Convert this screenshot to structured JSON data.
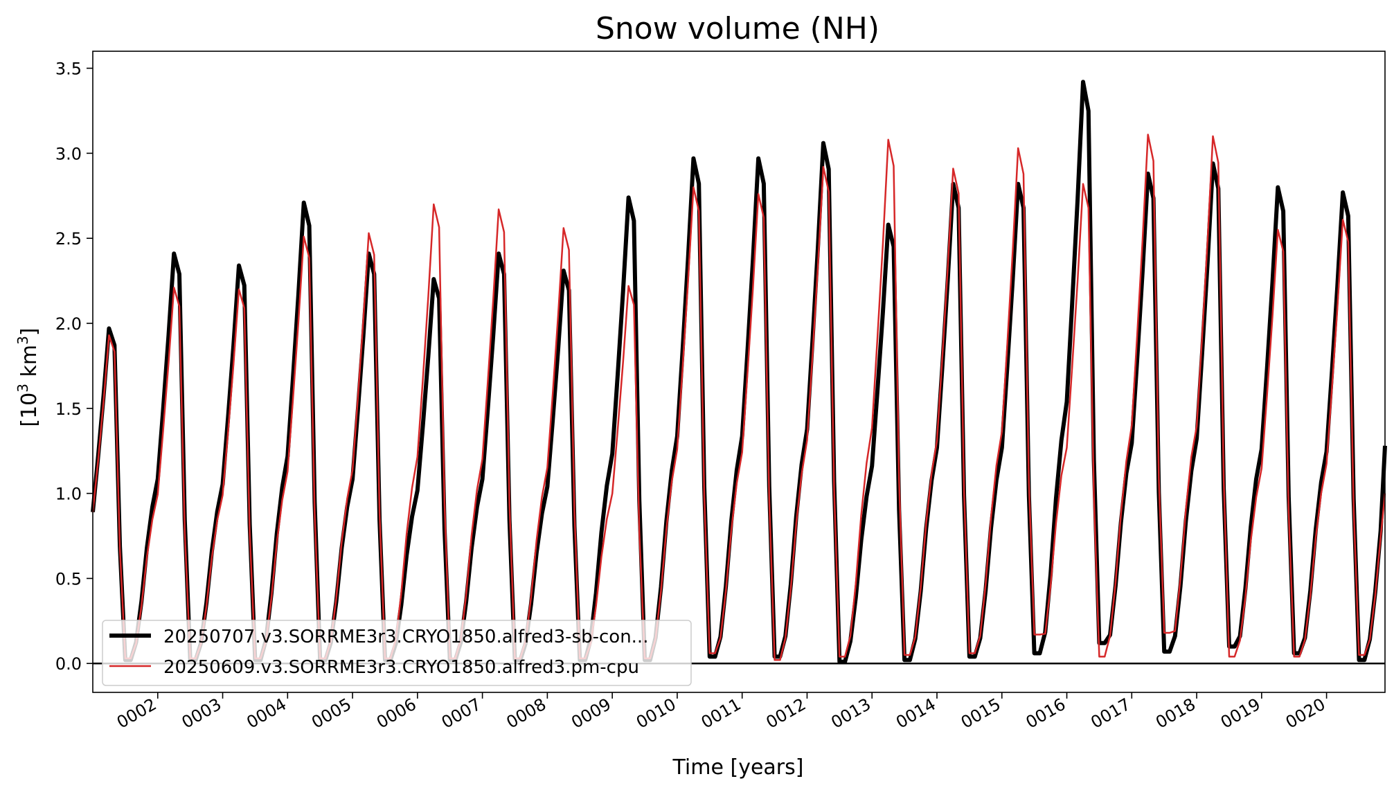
{
  "chart_data": {
    "type": "line",
    "title": "Snow volume (NH)",
    "xlabel": "Time [years]",
    "ylabel_base": "[10",
    "ylabel_sup": "3",
    "ylabel_mid": " km",
    "ylabel_sup2": "3",
    "ylabel_end": "]",
    "xlim": [
      1.0,
      20.9
    ],
    "ylim": [
      -0.17,
      3.6
    ],
    "x_tick_values": [
      2,
      3,
      4,
      5,
      6,
      7,
      8,
      9,
      10,
      11,
      12,
      13,
      14,
      15,
      16,
      17,
      18,
      19,
      20
    ],
    "x_tick_labels": [
      "0002",
      "0003",
      "0004",
      "0005",
      "0006",
      "0007",
      "0008",
      "0009",
      "0010",
      "0011",
      "0012",
      "0013",
      "0014",
      "0015",
      "0016",
      "0017",
      "0018",
      "0019",
      "0020"
    ],
    "y_tick_values": [
      0.0,
      0.5,
      1.0,
      1.5,
      2.0,
      2.5,
      3.0,
      3.5
    ],
    "y_tick_labels": [
      "0.0",
      "0.5",
      "1.0",
      "1.5",
      "2.0",
      "2.5",
      "3.0",
      "3.5"
    ],
    "zero_line": 0.0,
    "grid": false,
    "legend_position": "lower-left",
    "series": [
      {
        "name": "20250707.v3.SORRME3r3.CRYO1850.alfred3-sb-con...",
        "color": "#000000",
        "peaks": [
          1.97,
          2.41,
          2.34,
          2.71,
          2.41,
          2.26,
          2.41,
          2.31,
          2.74,
          2.97,
          2.97,
          3.06,
          2.58,
          2.82,
          2.82,
          3.42,
          2.88,
          2.94,
          2.8,
          2.77
        ],
        "minima": [
          0.02,
          0.02,
          0.02,
          0.02,
          0.02,
          0.02,
          0.02,
          0.02,
          0.02,
          0.04,
          0.04,
          0.01,
          0.02,
          0.04,
          0.06,
          0.12,
          0.07,
          0.1,
          0.06,
          0.02
        ],
        "end_value": 1.28
      },
      {
        "name": "20250609.v3.SORRME3r3.CRYO1850.alfred3.pm-cpu",
        "color": "#d62728",
        "peaks": [
          1.93,
          2.21,
          2.2,
          2.51,
          2.53,
          2.7,
          2.67,
          2.56,
          2.22,
          2.8,
          2.76,
          2.92,
          3.08,
          2.91,
          3.03,
          2.82,
          3.11,
          3.1,
          2.55,
          2.61
        ],
        "minima": [
          0.03,
          0.03,
          0.03,
          0.03,
          0.03,
          0.03,
          0.03,
          0.03,
          0.03,
          0.06,
          0.02,
          0.04,
          0.05,
          0.06,
          0.17,
          0.04,
          0.18,
          0.04,
          0.04,
          0.05
        ],
        "end_value": 1.0
      }
    ]
  }
}
